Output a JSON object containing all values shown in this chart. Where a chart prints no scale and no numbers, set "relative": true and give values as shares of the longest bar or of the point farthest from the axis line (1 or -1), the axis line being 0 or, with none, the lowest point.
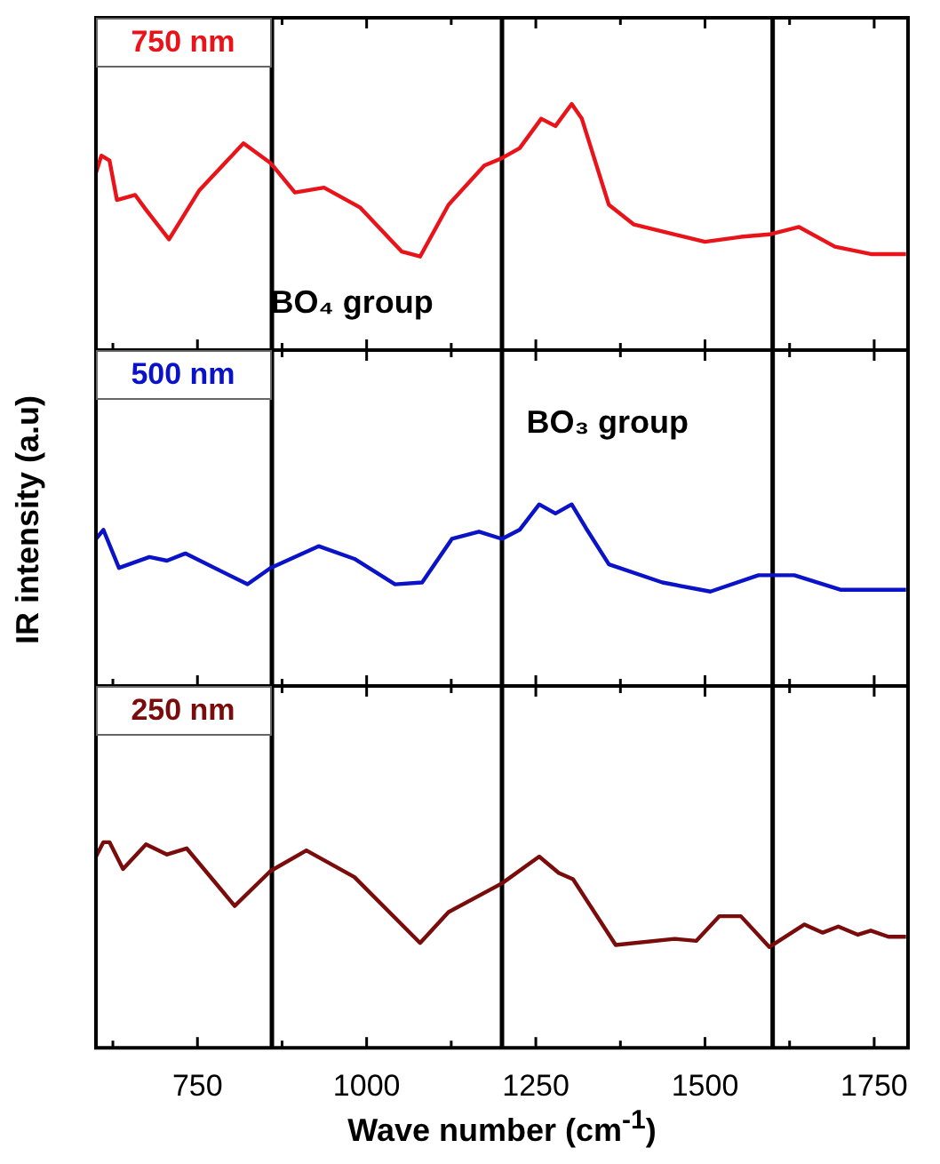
{
  "chart_data": [
    {
      "type": "line",
      "relative": true,
      "legend": "top left",
      "tick_labels": false,
      "xlim": [
        600,
        1800
      ],
      "xticks": [
        {
          "value": 625,
          "label": null
        },
        750,
        {
          "value": 875,
          "label": null
        },
        1000,
        {
          "value": 1125,
          "label": null
        },
        1250,
        {
          "value": 1375,
          "label": null
        },
        1500,
        {
          "value": 1625,
          "label": null
        },
        1750
      ],
      "series": [
        {
          "name": "750 nm",
          "color": "#e8141a",
          "x": [
            600,
            608,
            620,
            631,
            658,
            674,
            708,
            753,
            818,
            858,
            894,
            937,
            990,
            1052,
            1079,
            1121,
            1174,
            1200,
            1226,
            1258,
            1279,
            1303,
            1318,
            1358,
            1395,
            1500,
            1553,
            1595,
            1639,
            1692,
            1745,
            1797
          ],
          "values": [
            0.72,
            0.79,
            0.77,
            0.61,
            0.63,
            0.57,
            0.45,
            0.65,
            0.84,
            0.76,
            0.64,
            0.66,
            0.58,
            0.4,
            0.38,
            0.59,
            0.75,
            0.78,
            0.82,
            0.94,
            0.91,
            1,
            0.94,
            0.59,
            0.51,
            0.44,
            0.46,
            0.47,
            0.5,
            0.42,
            0.39,
            0.39
          ]
        }
      ],
      "ref_lines": [
        {
          "axis": "x",
          "value": 860
        },
        {
          "axis": "x",
          "value": 1200
        },
        {
          "axis": "x",
          "value": 1600
        }
      ],
      "annotations": [
        "BO₄ group"
      ]
    },
    {
      "type": "line",
      "relative": true,
      "legend": "top left",
      "tick_labels": false,
      "ylabel": "IR intensity (a.u)",
      "xlim": [
        600,
        1800
      ],
      "xticks": [
        {
          "value": 625,
          "label": null
        },
        750,
        {
          "value": 875,
          "label": null
        },
        1000,
        {
          "value": 1125,
          "label": null
        },
        1250,
        {
          "value": 1375,
          "label": null
        },
        1500,
        {
          "value": 1625,
          "label": null
        },
        1750
      ],
      "series": [
        {
          "name": "500 nm",
          "color": "#0b13c8",
          "x": [
            600,
            611,
            634,
            679,
            705,
            732,
            824,
            858,
            929,
            982,
            1042,
            1082,
            1126,
            1166,
            1200,
            1226,
            1255,
            1279,
            1303,
            1324,
            1358,
            1437,
            1508,
            1579,
            1632,
            1700,
            1797
          ],
          "values": [
            0.81,
            0.86,
            0.65,
            0.71,
            0.69,
            0.73,
            0.56,
            0.65,
            0.77,
            0.7,
            0.56,
            0.57,
            0.81,
            0.85,
            0.81,
            0.86,
            1,
            0.95,
            1,
            0.87,
            0.67,
            0.57,
            0.52,
            0.61,
            0.61,
            0.53,
            0.53
          ]
        }
      ],
      "ref_lines": [
        {
          "axis": "x",
          "value": 860
        },
        {
          "axis": "x",
          "value": 1200
        },
        {
          "axis": "x",
          "value": 1600
        }
      ],
      "annotations": [
        "BO₃ group"
      ]
    },
    {
      "type": "line",
      "relative": true,
      "legend": "top left",
      "tick_labels": "x",
      "xlabel": "Wave number (cm$^{-1}$)",
      "xlim": [
        600,
        1800
      ],
      "xticks": [
        {
          "value": 625,
          "label": null
        },
        750,
        {
          "value": 875,
          "label": null
        },
        1000,
        {
          "value": 1125,
          "label": null
        },
        1250,
        {
          "value": 1375,
          "label": null
        },
        1500,
        {
          "value": 1625,
          "label": null
        },
        1750
      ],
      "series": [
        {
          "name": "250 nm",
          "color": "#7a0c0c",
          "x": [
            600,
            611,
            620,
            640,
            674,
            705,
            734,
            805,
            858,
            911,
            982,
            1079,
            1121,
            1200,
            1255,
            1284,
            1305,
            1368,
            1455,
            1487,
            1521,
            1553,
            1595,
            1647,
            1674,
            1697,
            1726,
            1745,
            1771,
            1797
          ],
          "values": [
            0.93,
            1,
            1,
            0.87,
            0.99,
            0.94,
            0.97,
            0.69,
            0.86,
            0.96,
            0.83,
            0.51,
            0.66,
            0.8,
            0.93,
            0.85,
            0.82,
            0.5,
            0.53,
            0.52,
            0.64,
            0.64,
            0.49,
            0.6,
            0.56,
            0.59,
            0.55,
            0.57,
            0.54,
            0.54
          ]
        }
      ],
      "ref_lines": [
        {
          "axis": "x",
          "value": 860
        },
        {
          "axis": "x",
          "value": 1200
        },
        {
          "axis": "x",
          "value": 1600
        }
      ]
    }
  ]
}
